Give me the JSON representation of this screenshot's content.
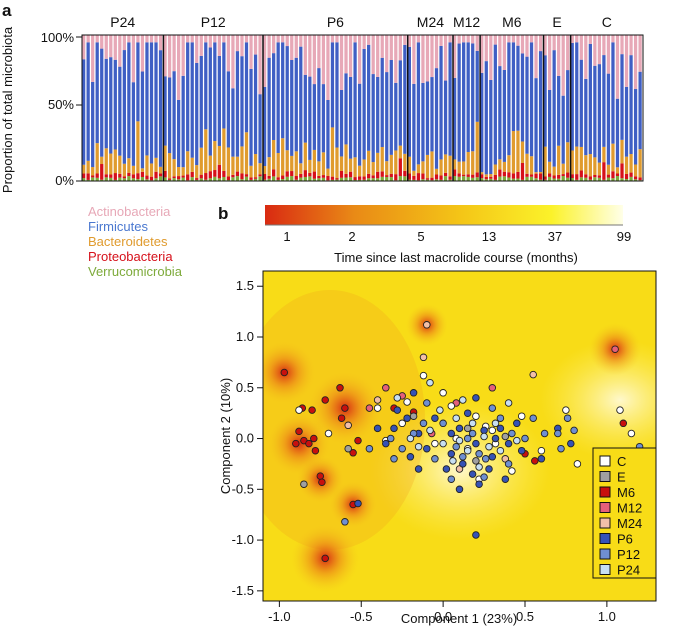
{
  "panel_a": {
    "label": "a",
    "ylabel": "Proportion of total microbiota",
    "yticks": [
      "100%",
      "50%",
      "0%"
    ],
    "groups": [
      {
        "name": "P24",
        "n": 18,
        "firm": 0.72,
        "bact": 0.1
      },
      {
        "name": "P12",
        "n": 22,
        "firm": 0.66,
        "bact": 0.12
      },
      {
        "name": "P6",
        "n": 32,
        "firm": 0.63,
        "bact": 0.13
      },
      {
        "name": "M24",
        "n": 10,
        "firm": 0.7,
        "bact": 0.1
      },
      {
        "name": "M12",
        "n": 6,
        "firm": 0.64,
        "bact": 0.12
      },
      {
        "name": "M6",
        "n": 14,
        "firm": 0.78,
        "bact": 0.07
      },
      {
        "name": "E",
        "n": 6,
        "firm": 0.62,
        "bact": 0.14
      },
      {
        "name": "C",
        "n": 16,
        "firm": 0.66,
        "bact": 0.12
      }
    ],
    "legend": [
      {
        "label": "Actinobacteria",
        "color": "#e7a8b7"
      },
      {
        "label": "Firmicutes",
        "color": "#3f5fc4"
      },
      {
        "label": "Bacteroidetes",
        "color": "#e09b2e"
      },
      {
        "label": "Proteobacteria",
        "color": "#d6101a"
      },
      {
        "label": "Verrucomicrobia",
        "color": "#7daa3a"
      }
    ]
  },
  "panel_b": {
    "label": "b",
    "colorbar": {
      "ticks": [
        "1",
        "2",
        "5",
        "13",
        "37",
        "99"
      ],
      "label": "Time since last macrolide course (months)",
      "colors": [
        "#d92a12",
        "#e98a16",
        "#f4c617",
        "#fbf22a",
        "#ffffe8"
      ]
    },
    "xlabel": "Component 1 (23%)",
    "ylabel": "Component 2 (10%)",
    "xticks": [
      "-1.0",
      "-0.5",
      "0.0",
      "0.5",
      "1.0"
    ],
    "yticks": [
      "1.5",
      "1.0",
      "0.5",
      "0.0",
      "-0.5",
      "-1.0",
      "-1.5"
    ],
    "legend": [
      {
        "label": "C",
        "color": "#ffffff"
      },
      {
        "label": "E",
        "color": "#a0a0a0"
      },
      {
        "label": "M6",
        "color": "#c8100e"
      },
      {
        "label": "M12",
        "color": "#e5607a"
      },
      {
        "label": "M24",
        "color": "#f2bfa8"
      },
      {
        "label": "P6",
        "color": "#3552b6"
      },
      {
        "label": "P12",
        "color": "#6f8fd2"
      },
      {
        "label": "P24",
        "color": "#c8dff2"
      }
    ]
  },
  "chart_data": [
    {
      "type": "bar",
      "stacked": true,
      "title": "",
      "ylabel": "Proportion of total microbiota",
      "ylim": [
        0,
        100
      ],
      "categories": [
        "P24",
        "P12",
        "P6",
        "M24",
        "M12",
        "M6",
        "E",
        "C"
      ],
      "series_order": [
        "Verrucomicrobia",
        "Proteobacteria",
        "Bacteroidetes",
        "Firmicutes",
        "Actinobacteria"
      ],
      "approx_mean_percent": {
        "Firmicutes": [
          72,
          66,
          63,
          70,
          64,
          78,
          62,
          66
        ],
        "Bacteroidetes": [
          10,
          12,
          13,
          10,
          12,
          7,
          14,
          12
        ],
        "Proteobacteria": [
          3,
          3,
          3,
          3,
          4,
          3,
          3,
          3
        ],
        "Verrucomicrobia": [
          2,
          2,
          2,
          2,
          2,
          1,
          2,
          2
        ],
        "Actinobacteria": [
          13,
          17,
          19,
          15,
          18,
          11,
          19,
          17
        ]
      }
    },
    {
      "type": "scatter",
      "xlabel": "Component 1 (23%)",
      "ylabel": "Component 2 (10%)",
      "xlim": [
        -1.1,
        1.3
      ],
      "ylim": [
        -1.6,
        1.65
      ],
      "hotspots": [
        {
          "x": -0.97,
          "y": 0.65,
          "s": 0.12
        },
        {
          "x": -0.88,
          "y": -0.05,
          "s": 0.12
        },
        {
          "x": -0.72,
          "y": -1.18,
          "s": 0.13
        },
        {
          "x": -0.75,
          "y": -0.4,
          "s": 0.09
        },
        {
          "x": -0.55,
          "y": -0.65,
          "s": 0.09
        },
        {
          "x": -0.1,
          "y": 1.12,
          "s": 0.08
        },
        {
          "x": 1.05,
          "y": 0.88,
          "s": 0.1
        },
        {
          "x": -0.6,
          "y": 0.3,
          "s": 0.14
        }
      ],
      "series": [
        {
          "name": "M6",
          "points": [
            [
              -0.97,
              0.65
            ],
            [
              -0.9,
              -0.05
            ],
            [
              -0.88,
              0.07
            ],
            [
              -0.85,
              -0.02
            ],
            [
              -0.82,
              -0.05
            ],
            [
              -0.79,
              0.0
            ],
            [
              -0.86,
              0.3
            ],
            [
              -0.8,
              0.28
            ],
            [
              -0.78,
              -0.12
            ],
            [
              -0.75,
              -0.37
            ],
            [
              -0.74,
              -0.43
            ],
            [
              -0.72,
              -1.18
            ],
            [
              -0.72,
              0.38
            ],
            [
              -0.63,
              0.5
            ],
            [
              -0.62,
              0.2
            ],
            [
              -0.6,
              0.3
            ],
            [
              -0.55,
              -0.65
            ],
            [
              -0.55,
              -0.14
            ],
            [
              -0.52,
              -0.02
            ],
            [
              -0.3,
              0.3
            ],
            [
              0.5,
              -0.15
            ],
            [
              0.56,
              -0.22
            ],
            [
              -0.18,
              0.26
            ],
            [
              1.1,
              0.15
            ]
          ]
        },
        {
          "name": "M12",
          "points": [
            [
              -0.35,
              0.5
            ],
            [
              -0.45,
              0.3
            ],
            [
              -0.25,
              0.42
            ],
            [
              1.05,
              0.88
            ],
            [
              0.08,
              0.35
            ],
            [
              -0.07,
              0.05
            ],
            [
              0.3,
              0.5
            ]
          ]
        },
        {
          "name": "M24",
          "points": [
            [
              -0.1,
              1.12
            ],
            [
              -0.12,
              0.8
            ],
            [
              -0.4,
              0.38
            ],
            [
              0.55,
              0.63
            ],
            [
              0.38,
              -0.2
            ],
            [
              0.1,
              -0.3
            ],
            [
              -0.58,
              0.13
            ]
          ]
        },
        {
          "name": "E",
          "points": [
            [
              -0.85,
              -0.45
            ],
            [
              -0.58,
              -0.1
            ],
            [
              0.15,
              0.1
            ],
            [
              0.38,
              0.02
            ],
            [
              -0.18,
              0.22
            ],
            [
              0.2,
              -0.22
            ]
          ]
        },
        {
          "name": "C",
          "points": [
            [
              -0.88,
              0.28
            ],
            [
              -0.7,
              0.05
            ],
            [
              -0.4,
              0.3
            ],
            [
              -0.22,
              0.36
            ],
            [
              -0.35,
              -0.02
            ],
            [
              -0.12,
              0.62
            ],
            [
              0.05,
              0.32
            ],
            [
              0.3,
              0.08
            ],
            [
              0.42,
              -0.32
            ],
            [
              0.6,
              -0.12
            ],
            [
              0.75,
              0.28
            ],
            [
              0.82,
              -0.25
            ],
            [
              1.08,
              0.28
            ],
            [
              1.15,
              0.05
            ],
            [
              0.08,
              0.0
            ],
            [
              0.15,
              -0.1
            ],
            [
              0.26,
              0.12
            ],
            [
              -0.05,
              -0.05
            ],
            [
              0.2,
              0.22
            ],
            [
              0.0,
              0.45
            ],
            [
              0.32,
              -0.05
            ],
            [
              0.22,
              -0.4
            ],
            [
              -0.25,
              0.15
            ],
            [
              0.48,
              0.22
            ]
          ]
        },
        {
          "name": "P6",
          "points": [
            [
              -0.3,
              0.1
            ],
            [
              -0.22,
              0.2
            ],
            [
              -0.15,
              0.05
            ],
            [
              -0.1,
              -0.1
            ],
            [
              0.05,
              -0.15
            ],
            [
              0.12,
              -0.25
            ],
            [
              0.2,
              -0.05
            ],
            [
              0.25,
              0.08
            ],
            [
              0.3,
              -0.18
            ],
            [
              0.35,
              0.1
            ],
            [
              0.4,
              -0.05
            ],
            [
              0.1,
              0.1
            ],
            [
              0.18,
              -0.35
            ],
            [
              0.22,
              -0.45
            ],
            [
              0.28,
              -0.3
            ],
            [
              0.02,
              -0.3
            ],
            [
              -0.05,
              0.2
            ],
            [
              -0.2,
              -0.18
            ],
            [
              -0.35,
              -0.05
            ],
            [
              -0.28,
              0.28
            ],
            [
              -0.18,
              0.45
            ],
            [
              0.45,
              0.15
            ],
            [
              0.38,
              -0.4
            ],
            [
              0.15,
              0.25
            ],
            [
              0.05,
              0.05
            ],
            [
              -0.4,
              0.1
            ],
            [
              0.6,
              -0.2
            ],
            [
              0.48,
              -0.12
            ],
            [
              0.7,
              0.1
            ],
            [
              0.78,
              -0.05
            ],
            [
              -0.15,
              -0.3
            ],
            [
              0.2,
              0.4
            ],
            [
              0.1,
              -0.5
            ],
            [
              -0.52,
              -0.64
            ],
            [
              0.2,
              -0.95
            ],
            [
              0.32,
              0.0
            ]
          ]
        },
        {
          "name": "P12",
          "points": [
            [
              -0.32,
              0.0
            ],
            [
              -0.25,
              -0.1
            ],
            [
              -0.12,
              0.15
            ],
            [
              0.0,
              0.15
            ],
            [
              0.08,
              -0.08
            ],
            [
              0.18,
              0.05
            ],
            [
              0.26,
              -0.2
            ],
            [
              0.35,
              0.2
            ],
            [
              0.42,
              0.05
            ],
            [
              0.55,
              0.2
            ],
            [
              0.62,
              0.05
            ],
            [
              0.72,
              -0.1
            ],
            [
              0.76,
              0.2
            ],
            [
              0.8,
              0.08
            ],
            [
              0.12,
              -0.18
            ],
            [
              0.25,
              -0.38
            ],
            [
              0.3,
              0.3
            ],
            [
              -0.05,
              -0.2
            ],
            [
              -0.18,
              0.05
            ],
            [
              -0.1,
              0.35
            ],
            [
              0.05,
              -0.4
            ],
            [
              0.4,
              -0.25
            ],
            [
              0.5,
              0.0
            ],
            [
              0.15,
              0.0
            ],
            [
              0.22,
              -0.15
            ],
            [
              -0.3,
              -0.2
            ],
            [
              -0.45,
              -0.1
            ],
            [
              1.2,
              -0.08
            ],
            [
              -0.6,
              -0.82
            ],
            [
              0.7,
              0.05
            ]
          ]
        },
        {
          "name": "P24",
          "points": [
            [
              -0.2,
              0.0
            ],
            [
              -0.08,
              0.08
            ],
            [
              0.0,
              -0.05
            ],
            [
              0.1,
              -0.02
            ],
            [
              0.18,
              0.15
            ],
            [
              0.28,
              -0.08
            ],
            [
              0.35,
              -0.12
            ],
            [
              0.45,
              -0.02
            ],
            [
              0.15,
              -0.12
            ],
            [
              0.06,
              -0.22
            ],
            [
              -0.02,
              0.28
            ],
            [
              0.12,
              0.38
            ],
            [
              0.22,
              -0.28
            ],
            [
              0.32,
              0.15
            ],
            [
              -0.28,
              0.4
            ],
            [
              -0.08,
              0.55
            ],
            [
              0.4,
              0.35
            ],
            [
              0.08,
              0.2
            ],
            [
              0.25,
              0.02
            ],
            [
              -0.15,
              -0.08
            ]
          ]
        }
      ]
    }
  ]
}
